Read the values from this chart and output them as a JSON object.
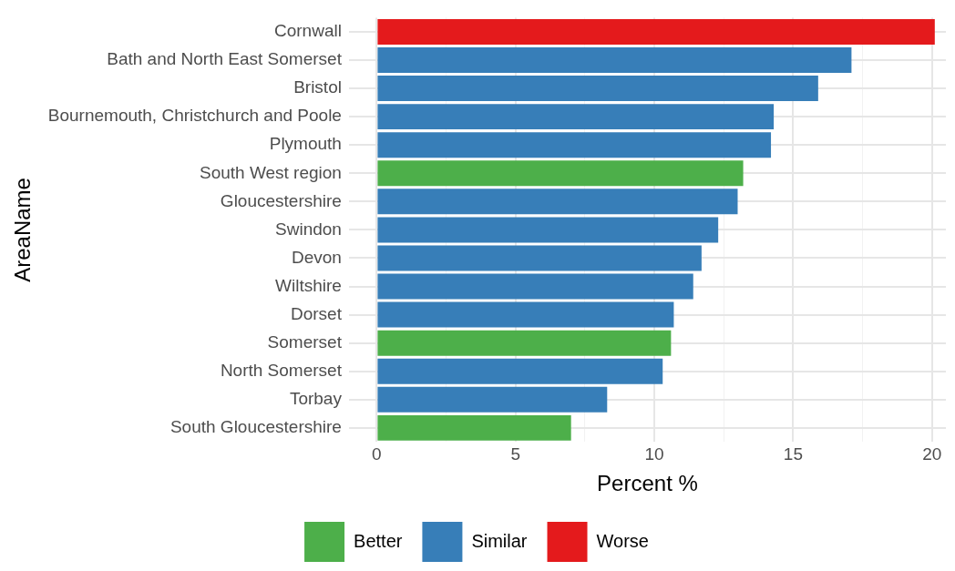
{
  "chart_data": {
    "type": "bar",
    "orientation": "horizontal",
    "stacked": true,
    "xlabel": "Percent %",
    "ylabel": "AreaName",
    "categories": [
      "Cornwall",
      "Bath and North East Somerset",
      "Bristol",
      "Bournemouth, Christchurch and Poole",
      "Plymouth",
      "South West region",
      "Gloucestershire",
      "Swindon",
      "Devon",
      "Wiltshire",
      "Dorset",
      "Somerset",
      "North Somerset",
      "Torbay",
      "South Gloucestershire"
    ],
    "series": [
      {
        "name": "Better",
        "color": "#4daf4a",
        "values": [
          null,
          null,
          null,
          null,
          null,
          13.2,
          null,
          null,
          null,
          null,
          null,
          10.6,
          null,
          null,
          7.0
        ]
      },
      {
        "name": "Similar",
        "color": "#377eb8",
        "values": [
          null,
          17.1,
          15.9,
          14.3,
          14.2,
          null,
          13.0,
          12.3,
          11.7,
          11.4,
          10.7,
          null,
          10.3,
          8.3,
          null
        ]
      },
      {
        "name": "Worse",
        "color": "#e41a1c",
        "values": [
          20.1,
          null,
          null,
          null,
          null,
          null,
          null,
          null,
          null,
          null,
          null,
          null,
          null,
          null,
          null
        ]
      }
    ],
    "xlim": [
      -1,
      20.5
    ],
    "xticks": [
      0,
      {
        "value": 2.5,
        "label": null
      },
      5,
      {
        "value": 7.5,
        "label": null
      },
      10,
      {
        "value": 12.5,
        "label": null
      },
      15,
      {
        "value": 17.5,
        "label": null
      },
      20
    ],
    "grid": true,
    "legend": "bottom"
  }
}
